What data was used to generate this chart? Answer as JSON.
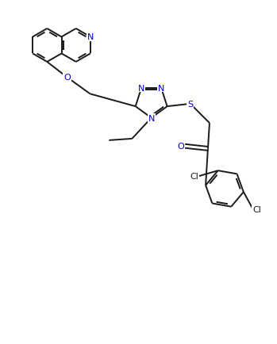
{
  "background_color": "#ffffff",
  "bond_color": "#1a1a1a",
  "N_color": "#0000cc",
  "O_color": "#0000cc",
  "S_color": "#0000cc",
  "Cl_color": "#1a1a1a",
  "line_width": 1.4,
  "figsize": [
    3.49,
    4.35
  ],
  "dpi": 100,
  "xlim": [
    0,
    8.5
  ],
  "ylim": [
    0,
    10.5
  ]
}
